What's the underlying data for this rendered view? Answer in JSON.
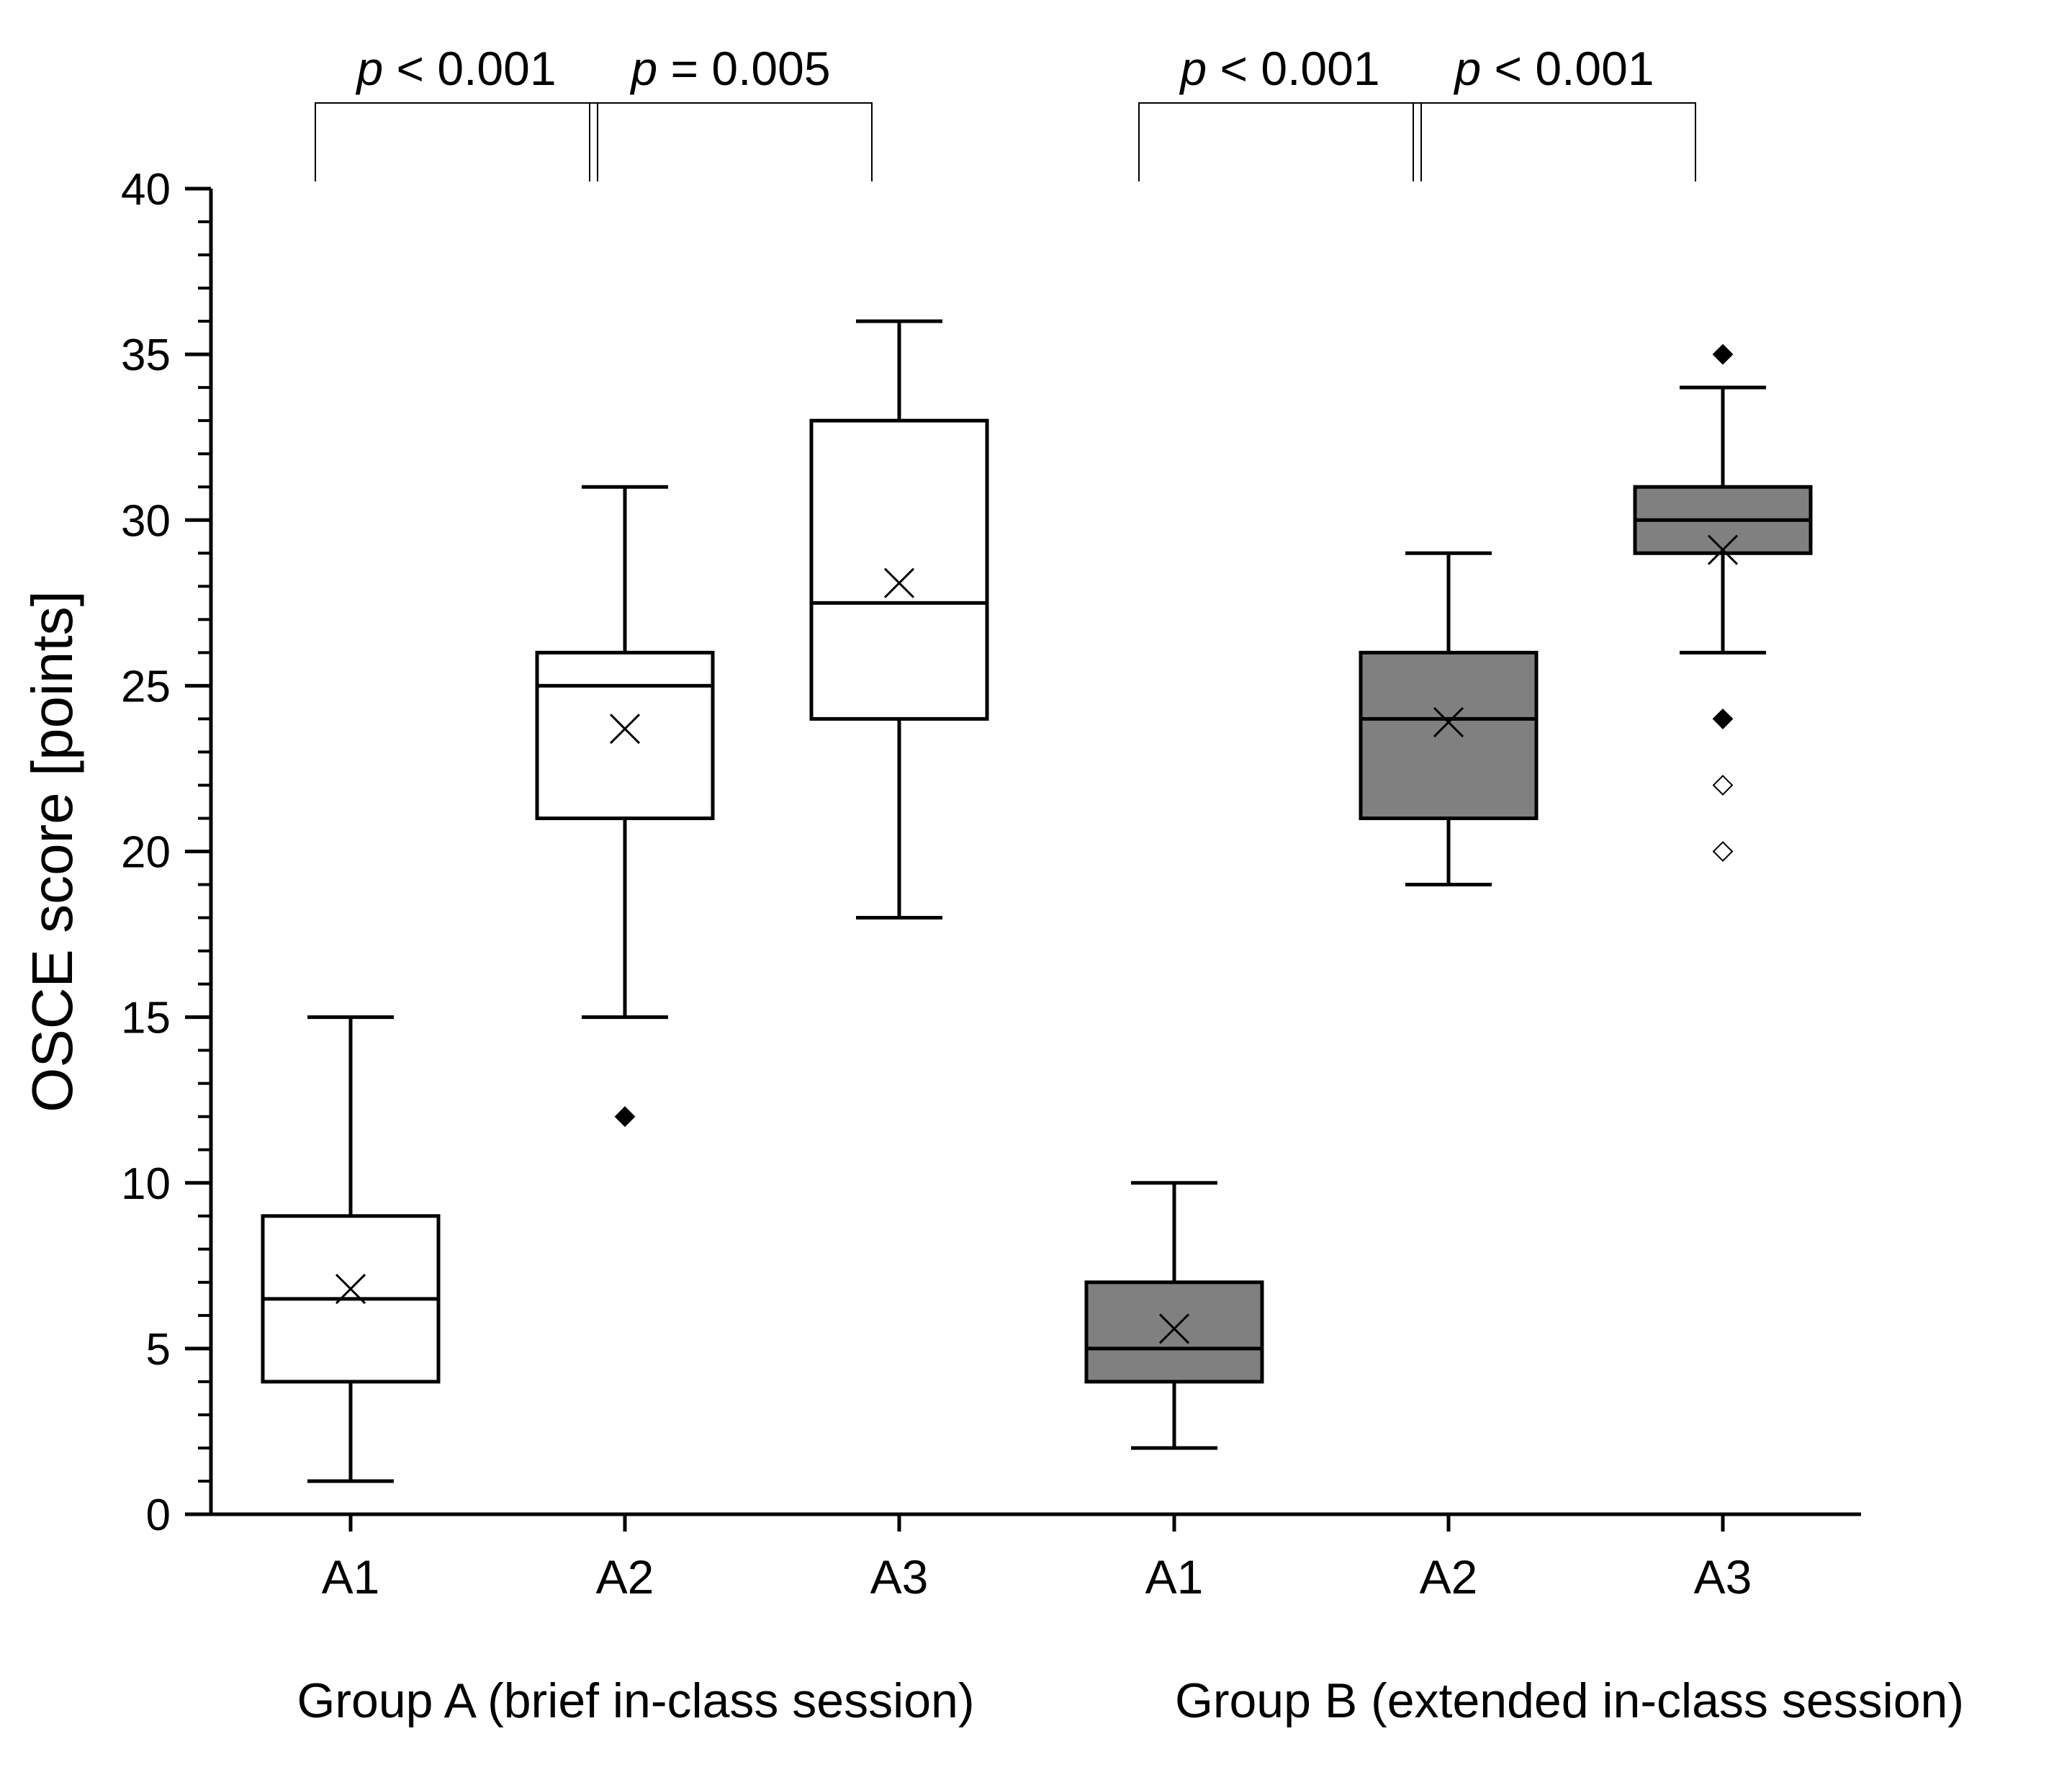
{
  "chart_data": {
    "type": "boxplot",
    "ylabel": "OSCE score [points]",
    "ylim": [
      0,
      40
    ],
    "yticks": [
      0,
      5,
      10,
      15,
      20,
      25,
      30,
      35,
      40
    ],
    "ytick_labels": [
      "0",
      "5",
      "10",
      "15",
      "20",
      "25",
      "30",
      "35",
      "40"
    ],
    "groups": [
      {
        "label": "Group A (brief in-class session)",
        "fill": "#ffffff",
        "boxes": [
          {
            "category": "A1",
            "whisker_low": 1,
            "q1": 4,
            "median": 6.5,
            "q3": 9,
            "whisker_high": 15,
            "mean": 6.8,
            "outliers": [],
            "far_outliers": []
          },
          {
            "category": "A2",
            "whisker_low": 15,
            "q1": 21,
            "median": 25,
            "q3": 26,
            "whisker_high": 31,
            "mean": 23.7,
            "outliers": [
              12
            ],
            "far_outliers": []
          },
          {
            "category": "A3",
            "whisker_low": 18,
            "q1": 24,
            "median": 27.5,
            "q3": 33,
            "whisker_high": 36,
            "mean": 28.1,
            "outliers": [],
            "far_outliers": []
          }
        ]
      },
      {
        "label": "Group B (extended in-class session)",
        "fill": "#808080",
        "boxes": [
          {
            "category": "A1",
            "whisker_low": 2,
            "q1": 4,
            "median": 5,
            "q3": 7,
            "whisker_high": 10,
            "mean": 5.6,
            "outliers": [],
            "far_outliers": []
          },
          {
            "category": "A2",
            "whisker_low": 19,
            "q1": 21,
            "median": 24,
            "q3": 26,
            "whisker_high": 29,
            "mean": 23.9,
            "outliers": [],
            "far_outliers": []
          },
          {
            "category": "A3",
            "whisker_low": 26,
            "q1": 29,
            "median": 30,
            "q3": 31,
            "whisker_high": 34,
            "mean": 29.1,
            "outliers": [
              35,
              24
            ],
            "far_outliers": [
              22,
              20
            ]
          }
        ]
      }
    ],
    "comparisons": [
      {
        "from": 0,
        "to": 1,
        "italic": "p",
        "rest": " < 0.001"
      },
      {
        "from": 1,
        "to": 2,
        "italic": "p",
        "rest": " = 0.005"
      },
      {
        "from": 3,
        "to": 4,
        "italic": "p",
        "rest": " < 0.001"
      },
      {
        "from": 4,
        "to": 5,
        "italic": "p",
        "rest": " < 0.001"
      }
    ]
  }
}
